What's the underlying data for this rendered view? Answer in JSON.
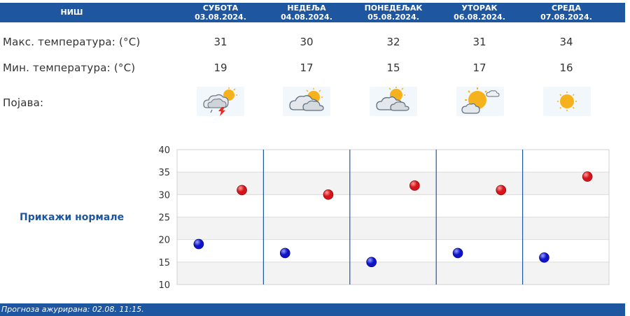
{
  "header": {
    "city": "НИШ"
  },
  "days": [
    {
      "name": "СУБОТА",
      "date": "03.08.2024.",
      "max": "31",
      "min": "19",
      "weather_icon": "thunderstorm-sun-icon"
    },
    {
      "name": "НЕДЕЉА",
      "date": "04.08.2024.",
      "max": "30",
      "min": "17",
      "weather_icon": "sun-behind-clouds-icon"
    },
    {
      "name": "ПОНЕДЕЉАК",
      "date": "05.08.2024.",
      "max": "32",
      "min": "15",
      "weather_icon": "sun-behind-clouds-icon"
    },
    {
      "name": "УТОРАК",
      "date": "06.08.2024.",
      "max": "31",
      "min": "17",
      "weather_icon": "sun-with-cloud-icon"
    },
    {
      "name": "СРЕДА",
      "date": "07.08.2024.",
      "max": "34",
      "min": "16",
      "weather_icon": "sun-icon"
    }
  ],
  "labels": {
    "max_temp": "Макс. температура: (°C)",
    "min_temp": "Мин. температура: (°C)",
    "phenomenon": "Појава:"
  },
  "show_normals": "Прикажи нормале",
  "footer": "Прогноза ажурирана:  02.08.  11:15.",
  "colors": {
    "header": "#1f56a0",
    "max_dot": "#d4141a",
    "min_dot": "#1014c8"
  },
  "chart_data": {
    "type": "scatter",
    "ylim": [
      10,
      40
    ],
    "yticks": [
      "40",
      "35",
      "30",
      "25",
      "20",
      "15",
      "10"
    ],
    "grid": true,
    "categories": [
      "03.08.2024.",
      "04.08.2024.",
      "05.08.2024.",
      "06.08.2024.",
      "07.08.2024."
    ],
    "series": [
      {
        "values": [
          31,
          30,
          32,
          31,
          34
        ]
      },
      {
        "values": [
          19,
          17,
          15,
          17,
          16
        ]
      }
    ]
  }
}
